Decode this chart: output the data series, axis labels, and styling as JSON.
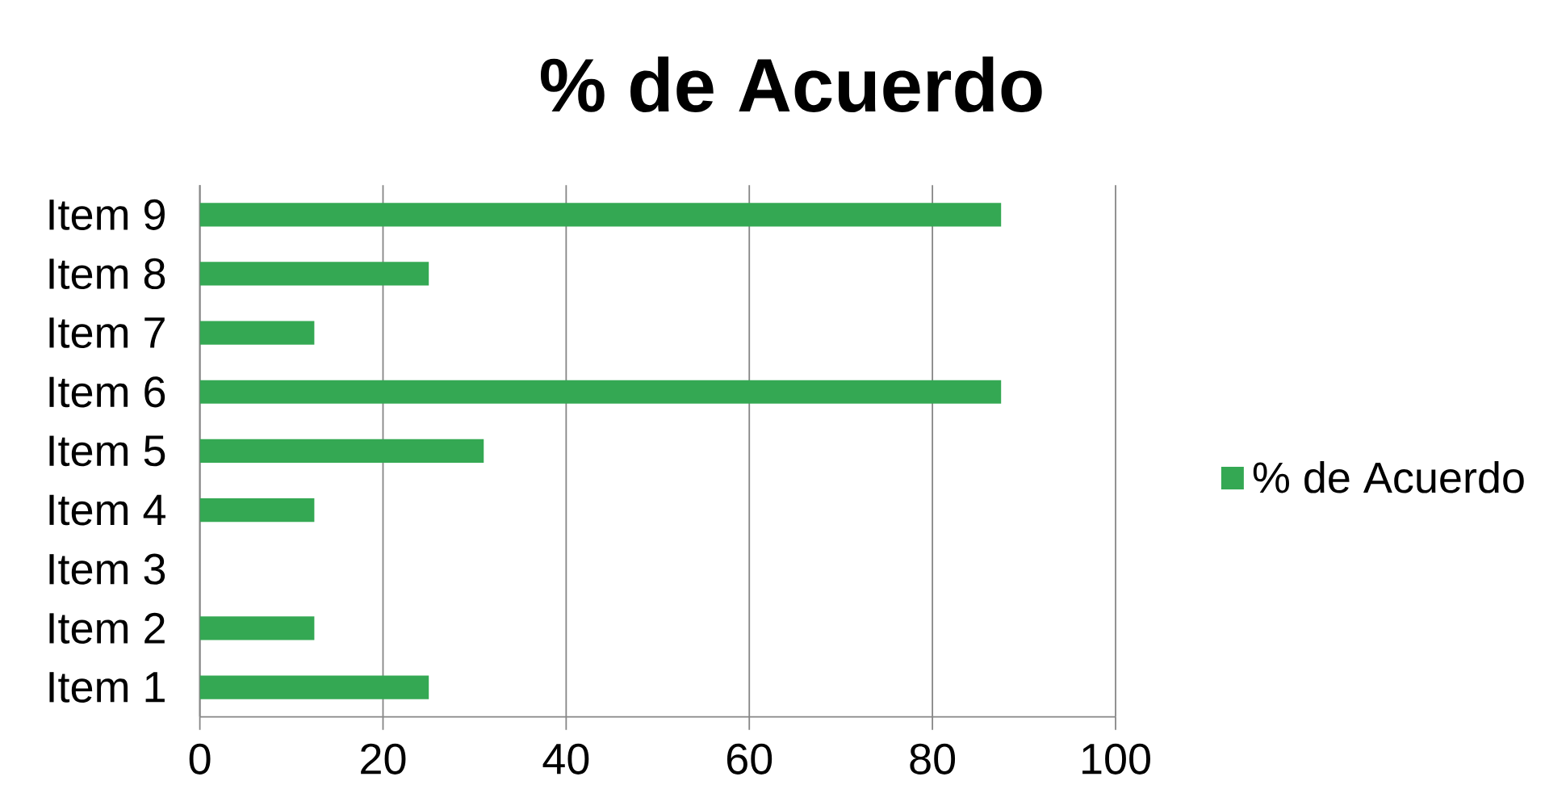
{
  "chart_data": {
    "type": "bar",
    "orientation": "horizontal",
    "title": "% de Acuerdo",
    "categories": [
      "Item 9",
      "Item 8",
      "Item 7",
      "Item 6",
      "Item 5",
      "Item 4",
      "Item 3",
      "Item 2",
      "Item 1"
    ],
    "series": [
      {
        "name": "% de Acuerdo",
        "color": "#34a853",
        "values": [
          87.5,
          25,
          12.5,
          87.5,
          31,
          12.5,
          0,
          12.5,
          25
        ]
      }
    ],
    "xlim": [
      0,
      100
    ],
    "xticks": [
      0,
      20,
      40,
      60,
      80,
      100
    ],
    "grid": "x",
    "legend": "right"
  }
}
